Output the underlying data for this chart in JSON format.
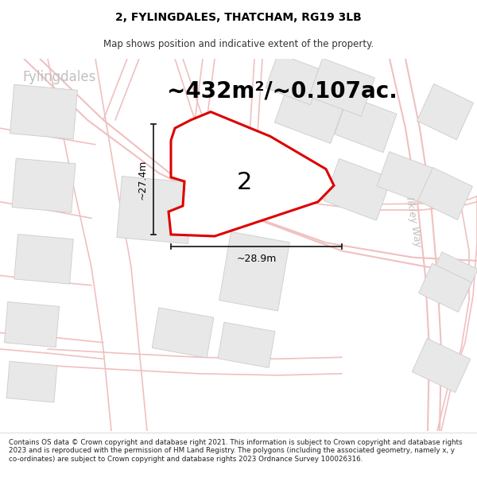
{
  "title": "2, FYLINGDALES, THATCHAM, RG19 3LB",
  "subtitle": "Map shows position and indicative extent of the property.",
  "area_text": "~432m²/~0.107ac.",
  "label_number": "2",
  "dim_width": "~28.9m",
  "dim_height": "~27.4m",
  "street_name_road": "Fylingdales",
  "road_label_right": "Ilkley Way",
  "road_label_left": "Fylingdales",
  "footer_text": "Contains OS data © Crown copyright and database right 2021. This information is subject to Crown copyright and database rights 2023 and is reproduced with the permission of HM Land Registry. The polygons (including the associated geometry, namely x, y co-ordinates) are subject to Crown copyright and database rights 2023 Ordnance Survey 100026316.",
  "map_bg": "#ffffff",
  "road_line_color": "#f0c0c0",
  "building_fill": "#e8e8e8",
  "building_edge": "#cccccc",
  "highlight_color": "#dd0000",
  "highlight_fill": "#ffffff",
  "dim_color": "#222222",
  "area_fontsize": 20,
  "label_fontsize": 22,
  "dim_fontsize": 9,
  "title_fontsize": 10,
  "subtitle_fontsize": 8.5,
  "footer_fontsize": 6.3
}
